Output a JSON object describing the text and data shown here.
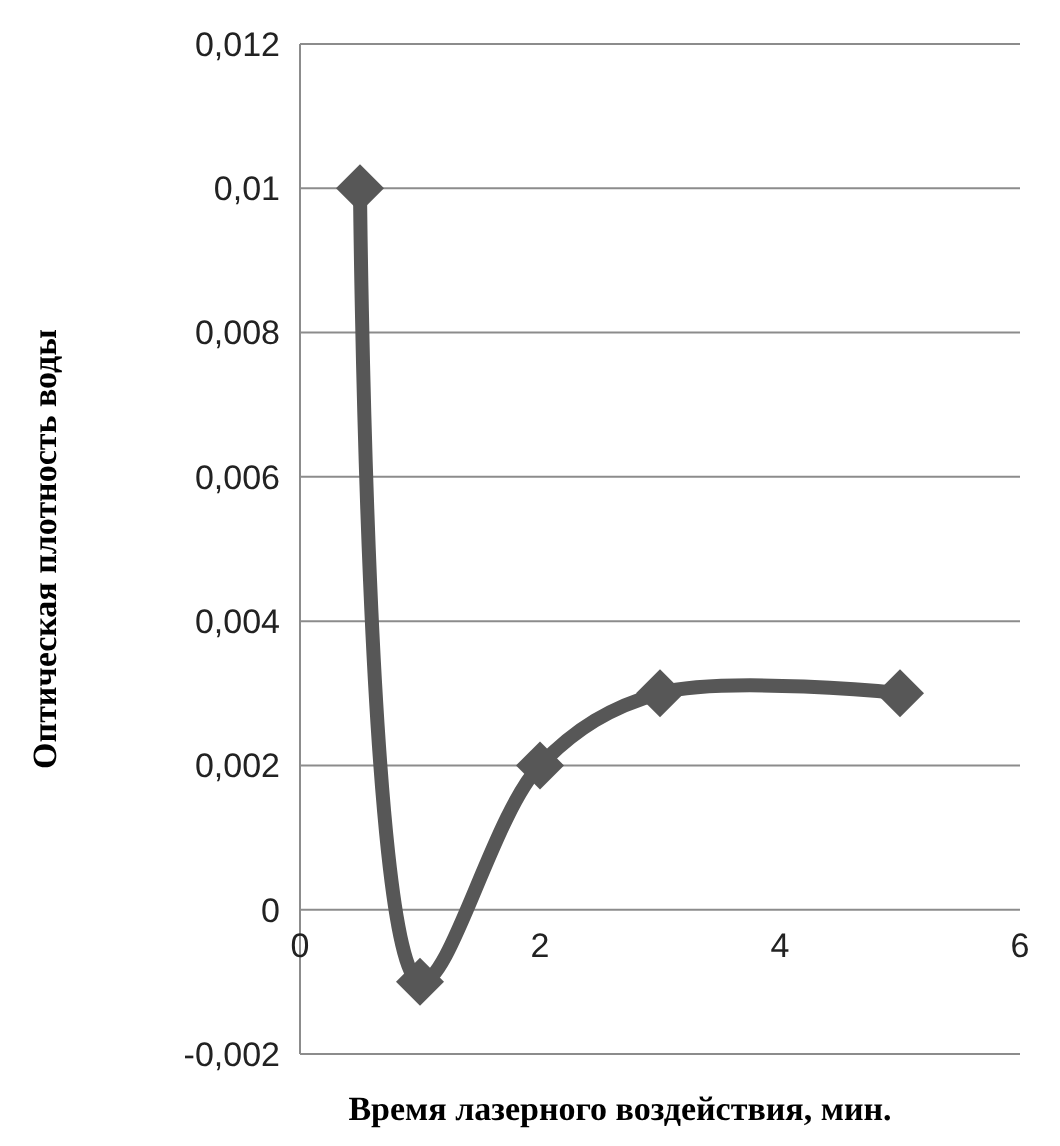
{
  "chart_data": {
    "type": "line",
    "xlabel": "Время лазерного воздействия, мин.",
    "ylabel": "Оптическая плотность воды",
    "x": [
      0.5,
      1,
      2,
      3,
      5
    ],
    "series": [
      {
        "color": "#575757",
        "values": [
          0.01,
          -0.001,
          0.002,
          0.003,
          0.003
        ]
      }
    ],
    "xlim": [
      0,
      6
    ],
    "xticks": [
      0,
      2,
      4,
      6
    ],
    "ylim": [
      -0.002,
      0.012
    ],
    "yticks": [
      {
        "value": -0.002,
        "label": "-0,002"
      },
      0,
      {
        "value": 0.002,
        "label": "0,002"
      },
      {
        "value": 0.004,
        "label": "0,004"
      },
      {
        "value": 0.006,
        "label": "0,006"
      },
      {
        "value": 0.008,
        "label": "0,008"
      },
      {
        "value": 0.01,
        "label": "0,01"
      },
      {
        "value": 0.012,
        "label": "0,012"
      }
    ],
    "grid": "y",
    "marker": "diamond",
    "line_style": "solid"
  }
}
